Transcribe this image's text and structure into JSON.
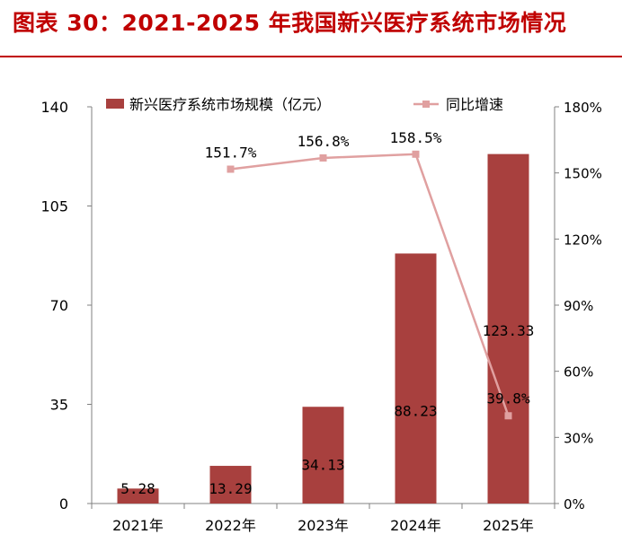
{
  "title": "图表 30：2021-2025 年我国新兴医疗系统市场情况",
  "colors": {
    "title": "#c00000",
    "bar": "#a8403e",
    "line": "#e0a0a0",
    "axis": "#808080",
    "text": "#000000"
  },
  "chart_data": {
    "type": "bar",
    "categories": [
      "2021年",
      "2022年",
      "2023年",
      "2024年",
      "2025年"
    ],
    "series": [
      {
        "name": "新兴医疗系统市场规模（亿元）",
        "type": "bar",
        "axis": "left",
        "values": [
          5.28,
          13.29,
          34.13,
          88.23,
          123.33
        ],
        "labels": [
          "5.28",
          "13.29",
          "34.13",
          "88.23",
          "123.33"
        ]
      },
      {
        "name": "同比增速",
        "type": "line",
        "axis": "right",
        "values": [
          null,
          151.7,
          156.8,
          158.5,
          39.8
        ],
        "labels": [
          "",
          "151.7%",
          "156.8%",
          "158.5%",
          "39.8%"
        ]
      }
    ],
    "y_left": {
      "ylim": [
        0,
        140
      ],
      "ticks": [
        "0",
        "35",
        "70",
        "105",
        "140"
      ]
    },
    "y_right": {
      "ylim": [
        0,
        180
      ],
      "ticks": [
        "0%",
        "30%",
        "60%",
        "90%",
        "120%",
        "150%",
        "180%"
      ]
    },
    "legend_position": "top",
    "grid": false
  }
}
